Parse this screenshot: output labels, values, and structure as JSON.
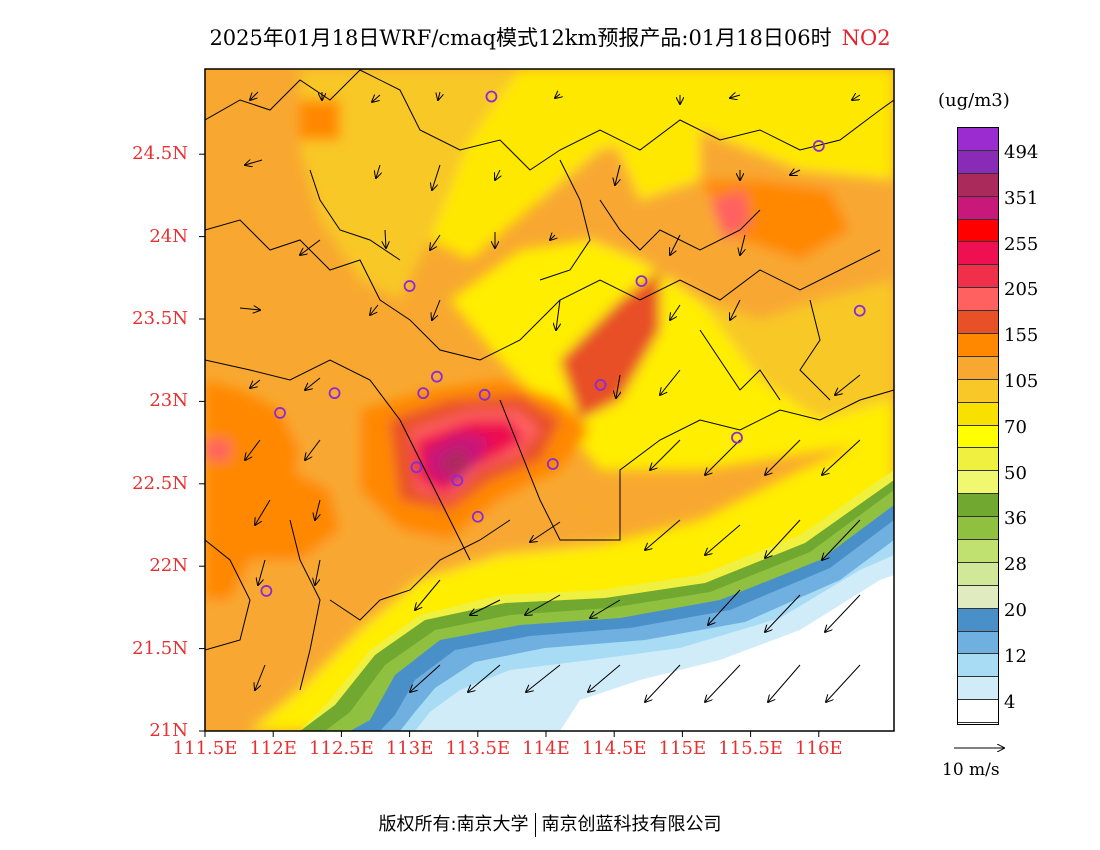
{
  "title": {
    "text": "2025年01月18日WRF/cmaq模式12km预报产品:01月18日06时",
    "pollutant": "NO2",
    "pollutant_color": "#e8202a"
  },
  "axes": {
    "lat_ticks": [
      {
        "value": 24.5,
        "label": "24.5N"
      },
      {
        "value": 24.0,
        "label": "24N"
      },
      {
        "value": 23.5,
        "label": "23.5N"
      },
      {
        "value": 23.0,
        "label": "23N"
      },
      {
        "value": 22.5,
        "label": "22.5N"
      },
      {
        "value": 22.0,
        "label": "22N"
      },
      {
        "value": 21.5,
        "label": "21.5N"
      },
      {
        "value": 21.0,
        "label": "21N"
      }
    ],
    "lon_ticks": [
      {
        "value": 111.5,
        "label": "111.5E"
      },
      {
        "value": 112.0,
        "label": "112E"
      },
      {
        "value": 112.5,
        "label": "112.5E"
      },
      {
        "value": 113.0,
        "label": "113E"
      },
      {
        "value": 113.5,
        "label": "113.5E"
      },
      {
        "value": 114.0,
        "label": "114E"
      },
      {
        "value": 114.5,
        "label": "114.5E"
      },
      {
        "value": 115.0,
        "label": "115E"
      },
      {
        "value": 115.5,
        "label": "115.5E"
      },
      {
        "value": 116.0,
        "label": "116E"
      }
    ],
    "tick_color": "#e83030"
  },
  "colorbar": {
    "unit": "(ug/m3)",
    "colors": [
      "#9b2ccf",
      "#8a2bb8",
      "#aa2a5c",
      "#c8187a",
      "#ff0000",
      "#ee1050",
      "#f0304a",
      "#ff6060",
      "#e85028",
      "#ff8800",
      "#f8a830",
      "#f8c828",
      "#f8e000",
      "#ffff00",
      "#f0f040",
      "#f0f870",
      "#70a830",
      "#90c040",
      "#c0e070",
      "#d0e898",
      "#e0ecc0",
      "#4a90c8",
      "#70b0e0",
      "#a8dcf4",
      "#d0ecf8",
      "#ffffff"
    ],
    "labels": [
      "494",
      "351",
      "255",
      "205",
      "155",
      "105",
      "70",
      "50",
      "36",
      "28",
      "20",
      "12",
      "4"
    ]
  },
  "wind": {
    "reference_label": "10 m/s"
  },
  "stations": [
    {
      "lon": 113.6,
      "lat": 24.85
    },
    {
      "lon": 116.0,
      "lat": 24.55
    },
    {
      "lon": 113.0,
      "lat": 23.7
    },
    {
      "lon": 114.7,
      "lat": 23.73
    },
    {
      "lon": 116.3,
      "lat": 23.55
    },
    {
      "lon": 112.45,
      "lat": 23.05
    },
    {
      "lon": 113.2,
      "lat": 23.15
    },
    {
      "lon": 113.1,
      "lat": 23.05
    },
    {
      "lon": 113.55,
      "lat": 23.04
    },
    {
      "lon": 114.4,
      "lat": 23.1
    },
    {
      "lon": 112.05,
      "lat": 22.93
    },
    {
      "lon": 115.4,
      "lat": 22.78
    },
    {
      "lon": 113.05,
      "lat": 22.6
    },
    {
      "lon": 113.35,
      "lat": 22.52
    },
    {
      "lon": 114.05,
      "lat": 22.62
    },
    {
      "lon": 113.5,
      "lat": 22.3
    },
    {
      "lon": 111.95,
      "lat": 21.85
    }
  ],
  "copyright": {
    "prefix": "版权所有:",
    "org1": "南京大学",
    "org2": "南京创蓝科技有限公司"
  }
}
